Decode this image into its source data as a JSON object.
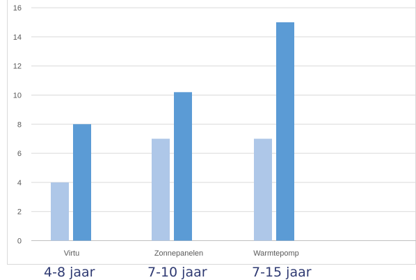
{
  "chart_data": {
    "type": "bar",
    "categories": [
      "Virtu",
      "Zonnepanelen",
      "Warmtepomp"
    ],
    "series": [
      {
        "values": [
          4,
          7,
          7
        ],
        "color": "#aec7e8"
      },
      {
        "values": [
          8,
          10.2,
          15
        ],
        "color": "#5b9bd5"
      }
    ],
    "ylim": [
      0,
      16
    ],
    "yticks": [
      0,
      2,
      4,
      6,
      8,
      10,
      12,
      14,
      16
    ],
    "ytick_labels": [
      "0",
      "2",
      "4",
      "6",
      "8",
      "10",
      "12",
      "14",
      "16"
    ],
    "grid": true,
    "xlabel": "",
    "ylabel": "",
    "title": ""
  },
  "range_labels": [
    "4-8 jaar",
    "7-10 jaar",
    "7-15 jaar"
  ]
}
